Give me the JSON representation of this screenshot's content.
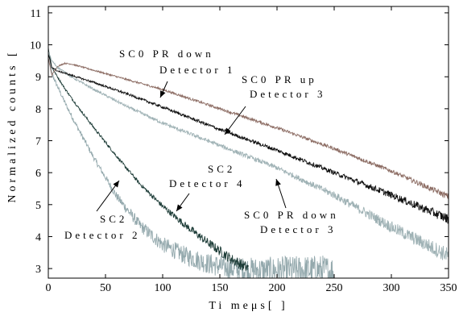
{
  "chart_data": {
    "type": "line",
    "xlabel": "Ti meμs[  ]",
    "ylabel": "Normalized counts [",
    "xlim": [
      0,
      350
    ],
    "ylim": [
      2.7,
      11.2
    ],
    "xticks": [
      0,
      50,
      100,
      150,
      200,
      250,
      300,
      350
    ],
    "yticks": [
      3,
      4,
      5,
      6,
      7,
      8,
      9,
      10,
      11
    ],
    "grid": false,
    "series": [
      {
        "color": "#8b6b62",
        "x": [
          0,
          3,
          8,
          14,
          20,
          40,
          70,
          100,
          150,
          200,
          250,
          300,
          350
        ],
        "y": [
          9.6,
          9.05,
          9.32,
          9.42,
          9.4,
          9.2,
          8.9,
          8.6,
          8.0,
          7.4,
          6.75,
          6.05,
          5.25
        ],
        "noise": 0.07
      },
      {
        "color": "#111111",
        "x": [
          0,
          3,
          8,
          14,
          20,
          40,
          70,
          100,
          150,
          200,
          250,
          300,
          350
        ],
        "y": [
          9.7,
          9.3,
          9.18,
          9.12,
          9.05,
          8.82,
          8.45,
          8.05,
          7.35,
          6.7,
          6.0,
          5.3,
          4.55
        ],
        "noise": 0.09
      },
      {
        "color": "#9fb2b5",
        "x": [
          0,
          3,
          8,
          14,
          20,
          40,
          70,
          100,
          150,
          200,
          250,
          300,
          350
        ],
        "y": [
          9.8,
          9.5,
          9.3,
          9.15,
          9.0,
          8.6,
          8.05,
          7.55,
          6.85,
          6.15,
          5.3,
          4.3,
          3.4
        ],
        "noise": 0.11
      },
      {
        "color": "#1e3d38",
        "x": [
          0,
          3,
          8,
          15,
          25,
          40,
          60,
          80,
          100,
          120,
          140,
          160,
          175
        ],
        "y": [
          9.9,
          9.3,
          9.0,
          8.6,
          8.1,
          7.4,
          6.5,
          5.65,
          4.95,
          4.35,
          3.8,
          3.3,
          3.0
        ],
        "noise": 0.12
      },
      {
        "color": "#94a9ad",
        "x": [
          0,
          3,
          8,
          15,
          25,
          40,
          60,
          80,
          100,
          120,
          140,
          160,
          180,
          200,
          220,
          240,
          250
        ],
        "y": [
          9.85,
          9.1,
          8.7,
          8.15,
          7.45,
          6.45,
          5.25,
          4.35,
          3.75,
          3.4,
          3.15,
          3.0,
          2.95,
          2.95,
          2.95,
          2.95,
          2.9
        ],
        "noise": 0.25
      }
    ],
    "annotations": [
      {
        "lines": [
          "SC0 PR down",
          "Detector 1"
        ]
      },
      {
        "lines": [
          "SC0 PR up",
          "Detector 3"
        ]
      },
      {
        "lines": [
          "SC2",
          "Detector 4"
        ]
      },
      {
        "lines": [
          "SC0 PR down",
          "Detector 3"
        ]
      },
      {
        "lines": [
          "SC2",
          "Detector 2"
        ]
      }
    ]
  }
}
